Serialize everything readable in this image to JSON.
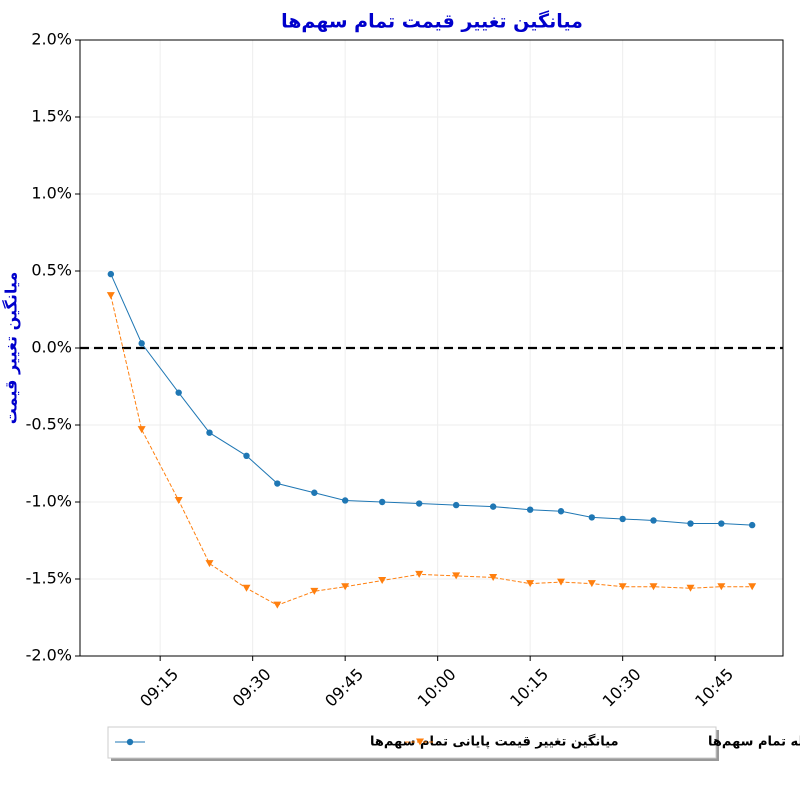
{
  "chart_data": {
    "type": "line",
    "title": "میانگین تغییر قیمت تمام سهم‌ها",
    "y_label": "میانگین تغییر قیمت",
    "x": [
      "09:07",
      "09:12",
      "09:18",
      "09:23",
      "09:29",
      "09:34",
      "09:40",
      "09:45",
      "09:51",
      "09:57",
      "10:03",
      "10:09",
      "10:15",
      "10:20",
      "10:25",
      "10:30",
      "10:35",
      "10:41",
      "10:46",
      "10:51"
    ],
    "series": [
      {
        "name": "میانگین تغییر قیمت پایانی تمام سهم‌ها",
        "color": "#1f77b4",
        "marker": "circle",
        "values": [
          0.48,
          0.03,
          -0.29,
          -0.55,
          -0.7,
          -0.88,
          -0.94,
          -0.99,
          -1.0,
          -1.01,
          -1.02,
          -1.03,
          -1.05,
          -1.06,
          -1.1,
          -1.11,
          -1.12,
          -1.14,
          -1.14,
          -1.15
        ]
      },
      {
        "name": "میانگین تغییر قیمت آخرین معامله تمام سهم‌ها",
        "color": "#ff7f0e",
        "marker": "triangle-down",
        "values": [
          0.34,
          -0.53,
          -0.99,
          -1.4,
          -1.56,
          -1.67,
          -1.58,
          -1.55,
          -1.51,
          -1.47,
          -1.48,
          -1.49,
          -1.53,
          -1.52,
          -1.53,
          -1.55,
          -1.55,
          -1.56,
          -1.55,
          -1.55
        ]
      }
    ],
    "xlim": [
      "09:02",
      "10:56"
    ],
    "xticks": [
      "09:15",
      "09:30",
      "09:45",
      "10:00",
      "10:15",
      "10:30",
      "10:45"
    ],
    "ylim": [
      -2,
      2
    ],
    "yticks": [
      {
        "value": -2,
        "label": "-2.0%"
      },
      {
        "value": -1.5,
        "label": "-1.5%"
      },
      {
        "value": -1,
        "label": "-1.0%"
      },
      {
        "value": -0.5,
        "label": "-0.5%"
      },
      {
        "value": 0,
        "label": "0.0%"
      },
      {
        "value": 0.5,
        "label": "0.5%"
      },
      {
        "value": 1,
        "label": "1.0%"
      },
      {
        "value": 1.5,
        "label": "1.5%"
      },
      {
        "value": 2,
        "label": "2.0%"
      }
    ],
    "reference_line": 0,
    "grid": true,
    "legend": "lower center"
  }
}
